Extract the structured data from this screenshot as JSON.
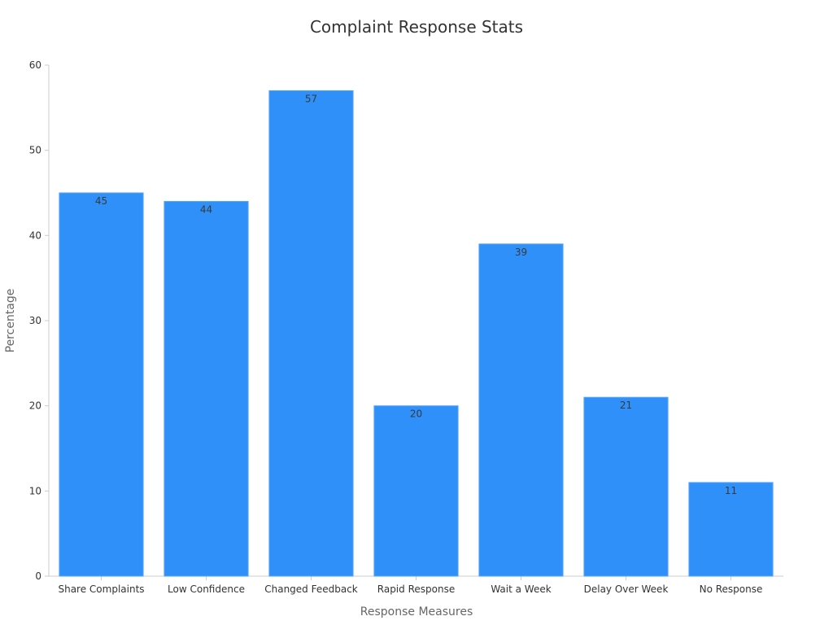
{
  "chart_data": {
    "type": "bar",
    "title": "Complaint Response Stats",
    "xlabel": "Response Measures",
    "ylabel": "Percentage",
    "categories": [
      "Share Complaints",
      "Low Confidence",
      "Changed Feedback",
      "Rapid Response",
      "Wait a Week",
      "Delay Over Week",
      "No Response"
    ],
    "values": [
      45,
      44,
      57,
      20,
      39,
      21,
      11
    ],
    "ylim": [
      0,
      60
    ],
    "yticks": [
      0,
      10,
      20,
      30,
      40,
      50,
      60
    ],
    "grid": false,
    "legend": "none",
    "bar_color": "#2e90f8",
    "bar_border_color": "#5aa7f9",
    "axis_color": "#cccccc"
  }
}
